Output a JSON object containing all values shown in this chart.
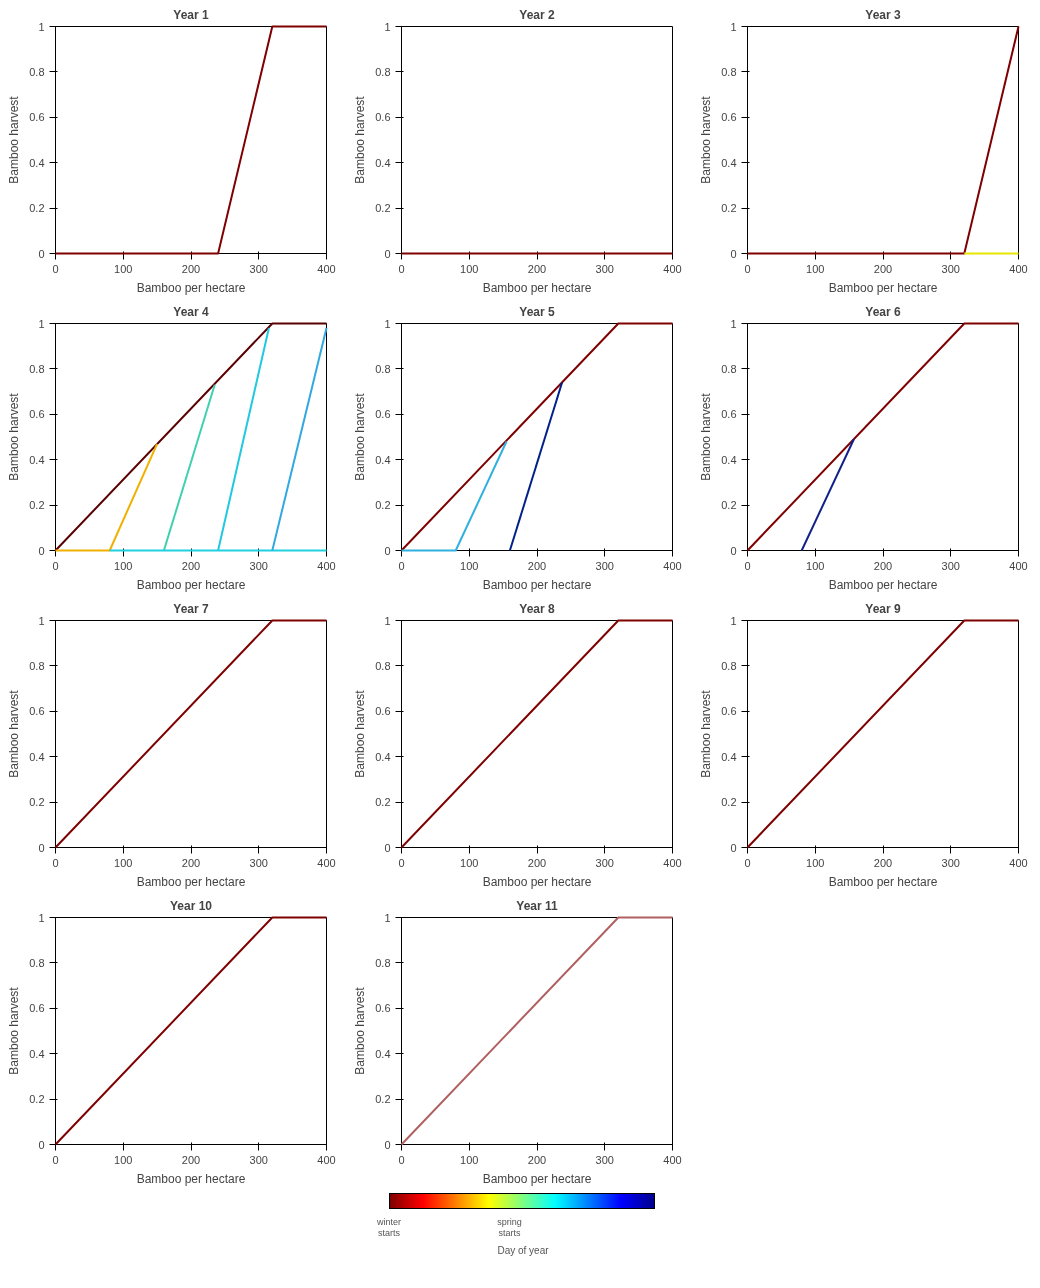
{
  "chart_data": [
    {
      "type": "line",
      "title": "Year 1",
      "xlabel": "Bamboo per hectare",
      "ylabel": "Bamboo harvest",
      "xlim": [
        0,
        400
      ],
      "ylim": [
        0,
        1
      ],
      "xticks": [
        0,
        100,
        200,
        300,
        400
      ],
      "yticks": [
        0,
        0.2,
        0.4,
        0.6,
        0.8,
        1
      ],
      "grid": false,
      "series": [
        {
          "color": "#7f0000",
          "x": [
            0,
            240,
            320,
            400
          ],
          "values": [
            0,
            0,
            1,
            1
          ]
        }
      ]
    },
    {
      "type": "line",
      "title": "Year 2",
      "xlabel": "Bamboo per hectare",
      "ylabel": "Bamboo harvest",
      "xlim": [
        0,
        400
      ],
      "ylim": [
        0,
        1
      ],
      "xticks": [
        0,
        100,
        200,
        300,
        400
      ],
      "yticks": [
        0,
        0.2,
        0.4,
        0.6,
        0.8,
        1
      ],
      "grid": false,
      "series": [
        {
          "color": "#7f0000",
          "x": [
            0,
            400
          ],
          "values": [
            0,
            0
          ]
        }
      ]
    },
    {
      "type": "line",
      "title": "Year 3",
      "xlabel": "Bamboo per hectare",
      "ylabel": "Bamboo harvest",
      "xlim": [
        0,
        400
      ],
      "ylim": [
        0,
        1
      ],
      "xticks": [
        0,
        100,
        200,
        300,
        400
      ],
      "yticks": [
        0,
        0.2,
        0.4,
        0.6,
        0.8,
        1
      ],
      "grid": false,
      "series": [
        {
          "color": "#7f0000",
          "x": [
            0,
            320,
            400
          ],
          "values": [
            0,
            0,
            1
          ]
        },
        {
          "color": "#e6e600",
          "x": [
            320,
            400
          ],
          "values": [
            0,
            0
          ]
        }
      ]
    },
    {
      "type": "line",
      "title": "Year 4",
      "xlabel": "Bamboo per hectare",
      "ylabel": "Bamboo harvest",
      "xlim": [
        0,
        400
      ],
      "ylim": [
        0,
        1
      ],
      "xticks": [
        0,
        100,
        200,
        300,
        400
      ],
      "yticks": [
        0,
        0.2,
        0.4,
        0.6,
        0.8,
        1
      ],
      "grid": false,
      "series": [
        {
          "color": "#5a0000",
          "x": [
            0,
            320,
            400
          ],
          "values": [
            0,
            1,
            1
          ]
        },
        {
          "color": "#f0b000",
          "x": [
            0,
            80,
            150
          ],
          "values": [
            0,
            0,
            0.47
          ]
        },
        {
          "color": "#40d0b0",
          "x": [
            160,
            235
          ],
          "values": [
            0,
            0.73
          ]
        },
        {
          "color": "#20d0e0",
          "x": [
            80,
            400
          ],
          "values": [
            0,
            0
          ]
        },
        {
          "color": "#20c8e0",
          "x": [
            240,
            315
          ],
          "values": [
            0,
            0.98
          ]
        },
        {
          "color": "#30a8e0",
          "x": [
            320,
            400
          ],
          "values": [
            0,
            0.98
          ]
        }
      ]
    },
    {
      "type": "line",
      "title": "Year 5",
      "xlabel": "Bamboo per hectare",
      "ylabel": "Bamboo harvest",
      "xlim": [
        0,
        400
      ],
      "ylim": [
        0,
        1
      ],
      "xticks": [
        0,
        100,
        200,
        300,
        400
      ],
      "yticks": [
        0,
        0.2,
        0.4,
        0.6,
        0.8,
        1
      ],
      "grid": false,
      "series": [
        {
          "color": "#7f0000",
          "x": [
            0,
            320,
            400
          ],
          "values": [
            0,
            1,
            1
          ]
        },
        {
          "color": "#30b0e0",
          "x": [
            0,
            80,
            155
          ],
          "values": [
            0,
            0,
            0.48
          ]
        },
        {
          "color": "#00208a",
          "x": [
            160,
            237
          ],
          "values": [
            0,
            0.74
          ]
        }
      ]
    },
    {
      "type": "line",
      "title": "Year 6",
      "xlabel": "Bamboo per hectare",
      "ylabel": "Bamboo harvest",
      "xlim": [
        0,
        400
      ],
      "ylim": [
        0,
        1
      ],
      "xticks": [
        0,
        100,
        200,
        300,
        400
      ],
      "yticks": [
        0,
        0.2,
        0.4,
        0.6,
        0.8,
        1
      ],
      "grid": false,
      "series": [
        {
          "color": "#7f0000",
          "x": [
            0,
            320,
            400
          ],
          "values": [
            0,
            1,
            1
          ]
        },
        {
          "color": "#10208a",
          "x": [
            80,
            157
          ],
          "values": [
            0,
            0.49
          ]
        }
      ]
    },
    {
      "type": "line",
      "title": "Year 7",
      "xlabel": "Bamboo per hectare",
      "ylabel": "Bamboo harvest",
      "xlim": [
        0,
        400
      ],
      "ylim": [
        0,
        1
      ],
      "xticks": [
        0,
        100,
        200,
        300,
        400
      ],
      "yticks": [
        0,
        0.2,
        0.4,
        0.6,
        0.8,
        1
      ],
      "grid": false,
      "series": [
        {
          "color": "#7f0000",
          "x": [
            0,
            320,
            400
          ],
          "values": [
            0,
            1,
            1
          ]
        }
      ]
    },
    {
      "type": "line",
      "title": "Year 8",
      "xlabel": "Bamboo per hectare",
      "ylabel": "Bamboo harvest",
      "xlim": [
        0,
        400
      ],
      "ylim": [
        0,
        1
      ],
      "xticks": [
        0,
        100,
        200,
        300,
        400
      ],
      "yticks": [
        0,
        0.2,
        0.4,
        0.6,
        0.8,
        1
      ],
      "grid": false,
      "series": [
        {
          "color": "#7f0000",
          "x": [
            0,
            320,
            400
          ],
          "values": [
            0,
            1,
            1
          ]
        }
      ]
    },
    {
      "type": "line",
      "title": "Year 9",
      "xlabel": "Bamboo per hectare",
      "ylabel": "Bamboo harvest",
      "xlim": [
        0,
        400
      ],
      "ylim": [
        0,
        1
      ],
      "xticks": [
        0,
        100,
        200,
        300,
        400
      ],
      "yticks": [
        0,
        0.2,
        0.4,
        0.6,
        0.8,
        1
      ],
      "grid": false,
      "series": [
        {
          "color": "#7f0000",
          "x": [
            0,
            320,
            400
          ],
          "values": [
            0,
            1,
            1
          ]
        }
      ]
    },
    {
      "type": "line",
      "title": "Year 10",
      "xlabel": "Bamboo per hectare",
      "ylabel": "Bamboo harvest",
      "xlim": [
        0,
        400
      ],
      "ylim": [
        0,
        1
      ],
      "xticks": [
        0,
        100,
        200,
        300,
        400
      ],
      "yticks": [
        0,
        0.2,
        0.4,
        0.6,
        0.8,
        1
      ],
      "grid": false,
      "series": [
        {
          "color": "#7f0000",
          "x": [
            0,
            320,
            400
          ],
          "values": [
            0,
            1,
            1
          ]
        }
      ]
    },
    {
      "type": "line",
      "title": "Year 11",
      "xlabel": "Bamboo per hectare",
      "ylabel": "Bamboo harvest",
      "xlim": [
        0,
        400
      ],
      "ylim": [
        0,
        1
      ],
      "xticks": [
        0,
        100,
        200,
        300,
        400
      ],
      "yticks": [
        0,
        0.2,
        0.4,
        0.6,
        0.8,
        1
      ],
      "grid": false,
      "series": [
        {
          "color": "#b06060",
          "x": [
            0,
            320,
            400
          ],
          "values": [
            0,
            1,
            1
          ]
        }
      ]
    },
    {
      "type": "other",
      "xlabel": "Day of year",
      "annotations": [
        "winter starts",
        "spring starts"
      ],
      "colors": [
        "#7f0000",
        "#ff0000",
        "#ff8000",
        "#ffff00",
        "#80ff80",
        "#00ffff",
        "#0080ff",
        "#0000ff",
        "#00008f"
      ]
    }
  ]
}
